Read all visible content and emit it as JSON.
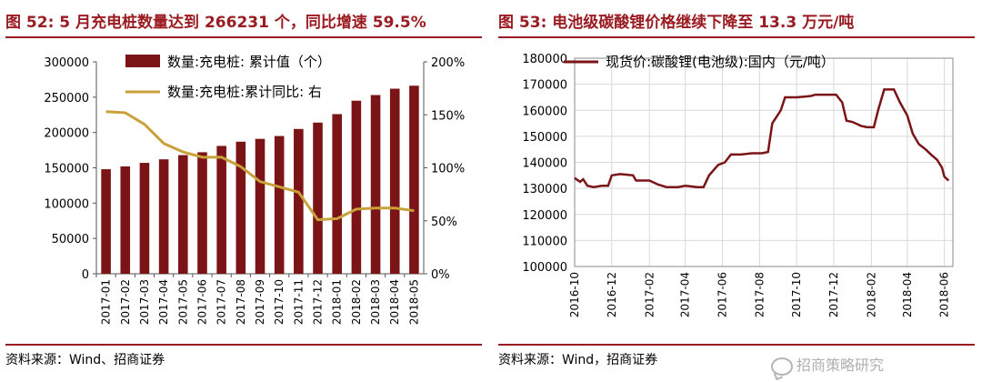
{
  "left": {
    "title": "图 52: 5 月充电桩数量达到 266231 个，同比增速 59.5%",
    "source": "资料来源：Wind、招商证券",
    "chart_data": {
      "type": "bar",
      "categories": [
        "2017-01",
        "2017-02",
        "2017-03",
        "2017-04",
        "2017-05",
        "2017-06",
        "2017-07",
        "2017-08",
        "2017-09",
        "2017-10",
        "2017-11",
        "2017-12",
        "2018-01",
        "2018-02",
        "2018-03",
        "2018-04",
        "2018-05"
      ],
      "series": [
        {
          "name": "数量:充电桩: 累计值（个）",
          "type": "bar",
          "axis": "left",
          "color": "#7b1416",
          "values": [
            148000,
            152000,
            157000,
            162000,
            168000,
            172000,
            181000,
            187000,
            191000,
            195000,
            205000,
            214000,
            226000,
            245000,
            253000,
            262000,
            266231
          ]
        },
        {
          "name": "数量:充电桩:累计同比: 右",
          "type": "line",
          "axis": "right",
          "color": "#c9a13a",
          "values": [
            153,
            152,
            141,
            123,
            115,
            110,
            110,
            101,
            87,
            82,
            77,
            51,
            52,
            61,
            62,
            62,
            59.5
          ]
        }
      ],
      "y_left": {
        "min": 0,
        "max": 300000,
        "ticks": [
          0,
          50000,
          100000,
          150000,
          200000,
          250000,
          300000
        ],
        "tick_labels": [
          "0",
          "50000",
          "100000",
          "150000",
          "200000",
          "250000",
          "300000"
        ]
      },
      "y_right": {
        "min": 0,
        "max": 200,
        "ticks": [
          0,
          50,
          100,
          150,
          200
        ],
        "tick_labels": [
          "0%",
          "50%",
          "100%",
          "150%",
          "200%"
        ]
      },
      "legend_position": "top-left",
      "grid": false
    }
  },
  "right": {
    "title": "图 53:  电池级碳酸锂价格继续下降至 13.3 万元/吨",
    "source": "资料来源：Wind，招商证券",
    "chart_data": {
      "type": "line",
      "series": [
        {
          "name": "现货价:碳酸锂(电池级):国内（元/吨）",
          "color": "#7b1416",
          "points": [
            [
              "2016-10-01",
              134000
            ],
            [
              "2016-10-10",
              132500
            ],
            [
              "2016-10-15",
              133500
            ],
            [
              "2016-10-22",
              131000
            ],
            [
              "2016-11-01",
              130500
            ],
            [
              "2016-11-15",
              131000
            ],
            [
              "2016-11-25",
              131000
            ],
            [
              "2016-12-01",
              135000
            ],
            [
              "2016-12-15",
              135500
            ],
            [
              "2017-01-05",
              135000
            ],
            [
              "2017-01-10",
              133000
            ],
            [
              "2017-02-01",
              133000
            ],
            [
              "2017-02-15",
              131500
            ],
            [
              "2017-03-01",
              130500
            ],
            [
              "2017-03-20",
              130500
            ],
            [
              "2017-04-01",
              131000
            ],
            [
              "2017-04-20",
              130500
            ],
            [
              "2017-05-01",
              130500
            ],
            [
              "2017-05-10",
              135000
            ],
            [
              "2017-05-25",
              139000
            ],
            [
              "2017-06-05",
              140000
            ],
            [
              "2017-06-15",
              143000
            ],
            [
              "2017-07-01",
              143000
            ],
            [
              "2017-07-20",
              143500
            ],
            [
              "2017-08-05",
              143500
            ],
            [
              "2017-08-15",
              144000
            ],
            [
              "2017-08-22",
              155000
            ],
            [
              "2017-09-05",
              160000
            ],
            [
              "2017-09-12",
              165000
            ],
            [
              "2017-10-01",
              165000
            ],
            [
              "2017-10-25",
              165500
            ],
            [
              "2017-11-01",
              166000
            ],
            [
              "2017-12-05",
              166000
            ],
            [
              "2017-12-15",
              163000
            ],
            [
              "2017-12-22",
              156000
            ],
            [
              "2018-01-01",
              155500
            ],
            [
              "2018-01-15",
              154000
            ],
            [
              "2018-01-25",
              153500
            ],
            [
              "2018-02-05",
              153500
            ],
            [
              "2018-02-12",
              160000
            ],
            [
              "2018-02-22",
              168000
            ],
            [
              "2018-03-10",
              168000
            ],
            [
              "2018-03-20",
              163000
            ],
            [
              "2018-04-01",
              158000
            ],
            [
              "2018-04-10",
              151000
            ],
            [
              "2018-04-20",
              147000
            ],
            [
              "2018-05-01",
              145000
            ],
            [
              "2018-05-10",
              143000
            ],
            [
              "2018-05-20",
              141000
            ],
            [
              "2018-05-28",
              138000
            ],
            [
              "2018-06-01",
              134500
            ],
            [
              "2018-06-08",
              133000
            ]
          ]
        }
      ],
      "x_range": [
        "2016-10-01",
        "2018-06-15"
      ],
      "x_ticks": [
        "2016-10",
        "2016-12",
        "2017-02",
        "2017-04",
        "2017-06",
        "2017-08",
        "2017-10",
        "2017-12",
        "2018-02",
        "2018-04",
        "2018-06"
      ],
      "y_range": [
        100000,
        180000
      ],
      "y_ticks": [
        100000,
        110000,
        120000,
        130000,
        140000,
        150000,
        160000,
        170000,
        180000
      ],
      "legend_position": "top-left",
      "grid": true
    }
  },
  "watermark": "招商策略研究"
}
